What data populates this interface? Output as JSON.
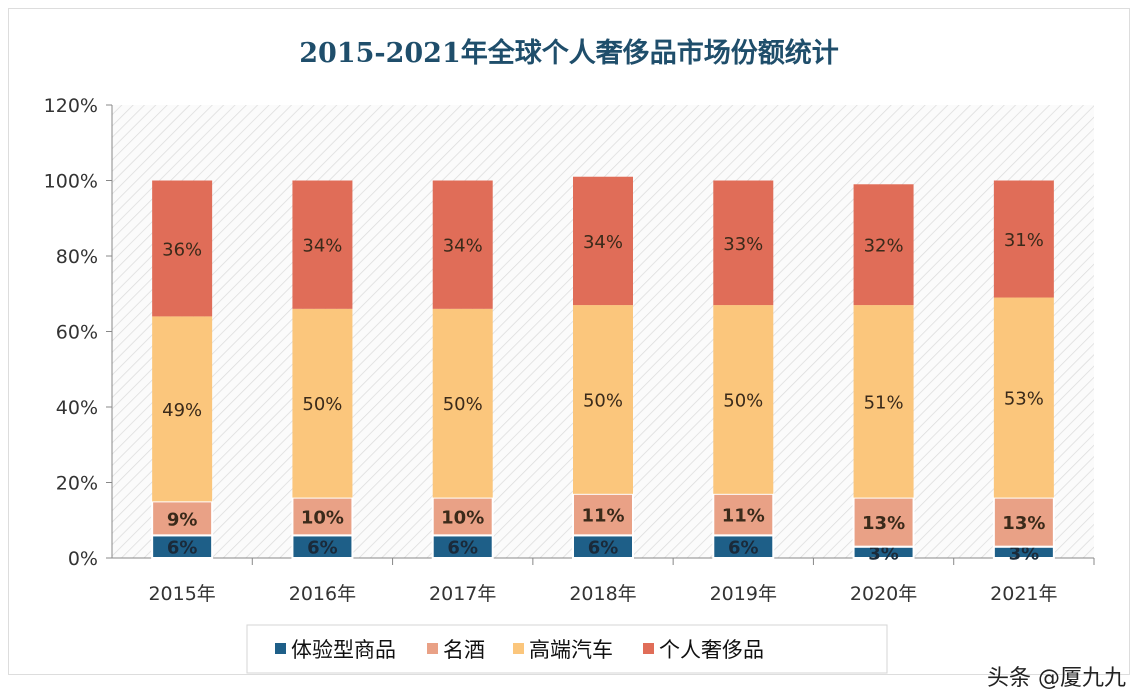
{
  "chart_data": {
    "type": "bar",
    "stacked": true,
    "title": "2015-2021年全球个人奢侈品市场份额统计",
    "categories": [
      "2015年",
      "2016年",
      "2017年",
      "2018年",
      "2019年",
      "2020年",
      "2021年"
    ],
    "ylim": [
      0,
      120
    ],
    "yticks": [
      "0%",
      "20%",
      "40%",
      "60%",
      "80%",
      "100%",
      "120%"
    ],
    "legend_position": "bottom",
    "series": [
      {
        "name": "体验型商品",
        "color": "#1e5f88",
        "values": [
          6,
          6,
          6,
          6,
          6,
          3,
          3
        ]
      },
      {
        "name": "名酒",
        "color": "#e9a186",
        "values": [
          9,
          10,
          10,
          11,
          11,
          13,
          13
        ]
      },
      {
        "name": "高端汽车",
        "color": "#fbc67c",
        "values": [
          49,
          50,
          50,
          50,
          50,
          51,
          53
        ]
      },
      {
        "name": "个人奢侈品",
        "color": "#e06d58",
        "values": [
          36,
          34,
          34,
          34,
          33,
          32,
          31
        ]
      }
    ],
    "label_suffix": "%"
  },
  "watermark": "头条 @厦九九"
}
